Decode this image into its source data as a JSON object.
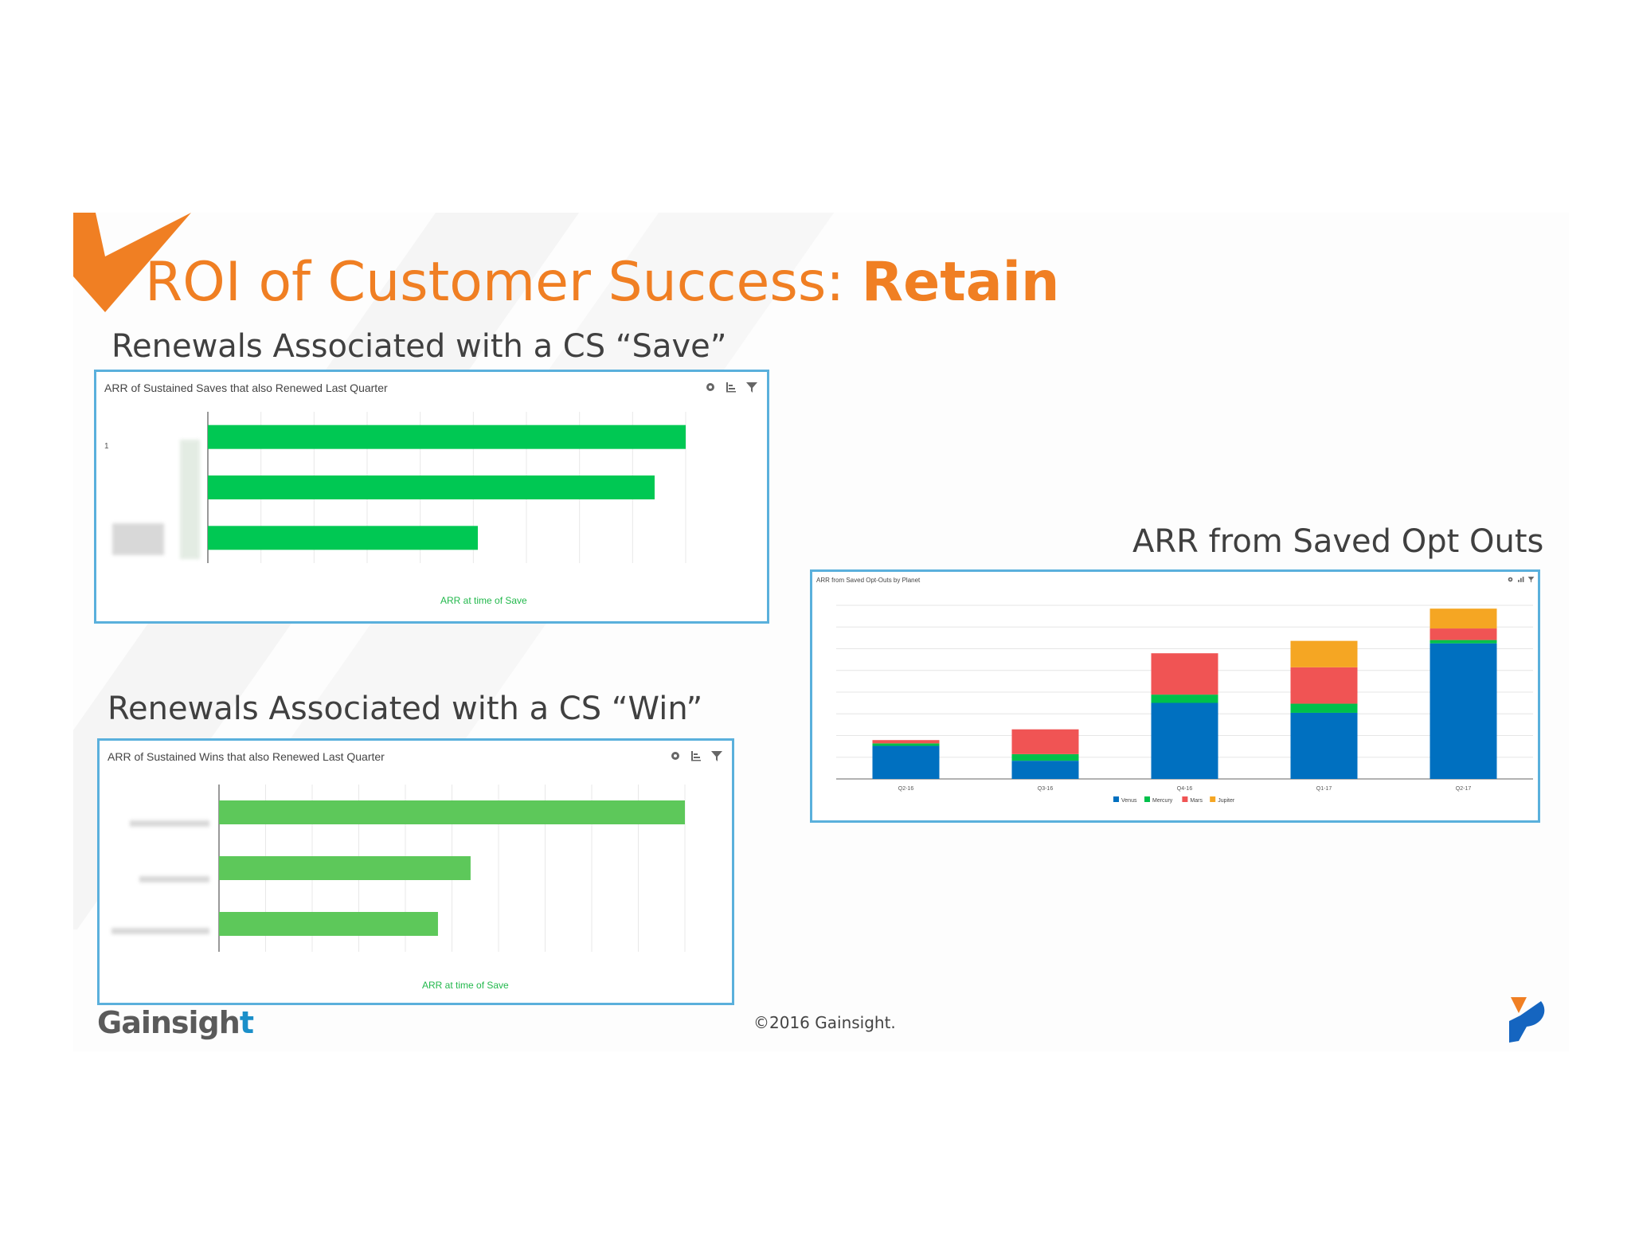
{
  "slide": {
    "title_prefix": "ROI of Customer Success: ",
    "title_bold": "Retain",
    "subhead_save": "Renewals Associated with a CS “Save”",
    "subhead_win": "Renewals Associated with a CS “Win”",
    "subhead_optouts": "ARR from Saved Opt Outs",
    "logo_text": "Gainsigh",
    "logo_accent": "t",
    "copyright": "©2016 Gainsight.",
    "colors": {
      "orange": "#f07f23",
      "panel_border": "#5ab0dc"
    }
  },
  "panel_save": {
    "title": "ARR of Sustained Saves that also Renewed Last Quarter",
    "axis_label": "ARR at time of Save",
    "tick_label": "1",
    "icons": [
      "gear-icon",
      "chart-type-icon",
      "filter-icon"
    ]
  },
  "panel_win": {
    "title": "ARR of Sustained Wins that also Renewed Last Quarter",
    "axis_label": "ARR at time of Save",
    "icons": [
      "gear-icon",
      "chart-type-icon",
      "filter-icon"
    ]
  },
  "panel_optouts": {
    "title": "ARR from Saved Opt-Outs by Planet",
    "icons": [
      "gear-icon",
      "chart-type-icon",
      "filter-icon"
    ]
  },
  "chart_data": [
    {
      "type": "bar",
      "orientation": "horizontal",
      "title": "ARR of Sustained Saves that also Renewed Last Quarter",
      "xlabel": "ARR at time of Save",
      "values": [
        100,
        93.5,
        56.5
      ],
      "colors": [
        "#00c853"
      ],
      "grid": true
    },
    {
      "type": "bar",
      "orientation": "horizontal",
      "title": "ARR of Sustained Wins that also Renewed Last Quarter",
      "xlabel": "ARR at time of Save",
      "values": [
        100,
        54,
        47
      ],
      "colors": [
        "#5dc85a"
      ],
      "grid": true
    },
    {
      "type": "bar",
      "stacked": true,
      "title": "ARR from Saved Opt-Outs by Planet",
      "categories": [
        "Q2-16",
        "Q3-16",
        "Q4-16",
        "Q1-17",
        "Q2-17"
      ],
      "series": [
        {
          "name": "Venus",
          "color": "#0070c0",
          "values": [
            20,
            11,
            46,
            40,
            82
          ]
        },
        {
          "name": "Mercury",
          "color": "#00c04b",
          "values": [
            1.5,
            4,
            5,
            5.5,
            2
          ]
        },
        {
          "name": "Mars",
          "color": "#f05454",
          "values": [
            2,
            15,
            25,
            22,
            7
          ]
        },
        {
          "name": "Jupiter",
          "color": "#f5a623",
          "values": [
            0,
            0,
            0,
            16,
            12
          ]
        }
      ],
      "ylim": [
        0,
        105
      ],
      "legend": "bottom",
      "grid": true
    }
  ]
}
